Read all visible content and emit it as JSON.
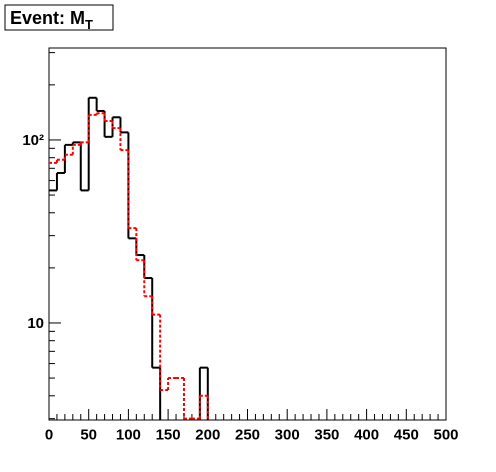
{
  "chart_data": {
    "type": "histogram",
    "title": "Event: M",
    "title_subscript": "T",
    "bins": [
      0,
      10,
      20,
      30,
      40,
      50,
      60,
      70,
      80,
      90,
      100,
      110,
      120,
      130,
      140,
      150,
      160,
      170,
      180,
      190,
      200,
      210,
      220,
      230,
      240,
      250,
      260,
      270,
      280,
      290,
      300,
      310,
      320,
      330,
      340,
      350,
      360,
      370,
      380,
      390,
      400,
      410,
      420,
      430,
      440,
      450,
      460,
      470,
      480,
      490,
      500
    ],
    "series": [
      {
        "color": "#000000",
        "dash": false,
        "values": [
          53,
          66,
          94,
          97,
          53,
          170,
          144,
          104,
          133,
          110,
          29,
          23.5,
          17.6,
          5.7,
          0,
          0,
          0,
          0,
          0,
          5.7,
          0,
          0,
          0,
          0,
          0,
          0,
          0,
          0,
          0,
          0,
          0,
          0,
          0,
          0,
          0,
          0,
          0,
          0,
          0,
          0,
          0,
          0,
          0,
          0,
          0,
          0,
          0,
          0,
          0,
          0
        ]
      },
      {
        "color": "#ff0000",
        "dash": true,
        "values": [
          75,
          78,
          83,
          94,
          97,
          137,
          140,
          127,
          116,
          88,
          33,
          22,
          14,
          11.1,
          4.3,
          5,
          5,
          3,
          3,
          4,
          0,
          0,
          0,
          0,
          0,
          0,
          0,
          0,
          0,
          0,
          0,
          0,
          0,
          0,
          0,
          0,
          0,
          0,
          0,
          0,
          0,
          0,
          0,
          0,
          0,
          0,
          0,
          0,
          0,
          0
        ]
      }
    ],
    "xlim": [
      0,
      500
    ],
    "xticks": [
      0,
      50,
      100,
      150,
      200,
      250,
      300,
      350,
      400,
      450,
      500
    ],
    "ylim": [
      2.95,
      318
    ],
    "log_y": true,
    "yticks": [
      10,
      {
        "value": 100,
        "label": "10²"
      }
    ],
    "yminorticks": [
      3,
      4,
      5,
      6,
      7,
      8,
      9,
      20,
      30,
      40,
      50,
      60,
      70,
      80,
      90,
      200,
      300
    ]
  }
}
